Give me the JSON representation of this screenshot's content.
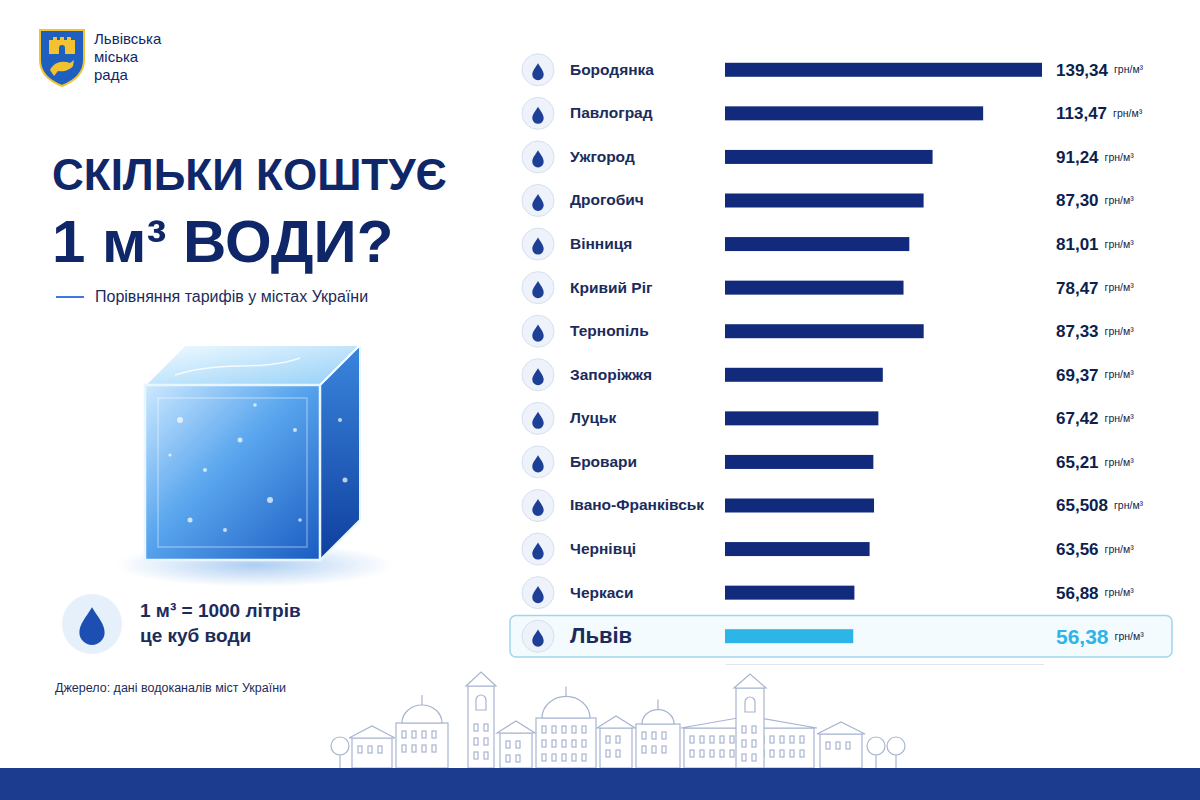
{
  "chart_data": {
    "type": "bar",
    "orientation": "horizontal",
    "organization": "Львівська міська рада",
    "title": "СКІЛЬКИ КОШТУЄ 1 м³ ВОДИ?",
    "subtitle": "Порівняння тарифів у містах України",
    "annotations": [
      "1 м³ = 1000 літрів",
      "це куб води"
    ],
    "source": "Джерело: дані водоканалів міст України",
    "unit_label": "грн/м³",
    "categories": [
      "Бородянка",
      "Павлоград",
      "Ужгород",
      "Дрогобич",
      "Вінниця",
      "Кривий Ріг",
      "Тернопіль",
      "Запоріжжя",
      "Луцьк",
      "Бровари",
      "Івано-Франківськ",
      "Чернівці",
      "Черкаси",
      "Львів"
    ],
    "values": [
      139.34,
      113.47,
      91.24,
      87.3,
      81.01,
      78.47,
      87.33,
      69.37,
      67.42,
      65.21,
      65.508,
      63.56,
      56.88,
      56.38
    ],
    "value_labels": [
      "139,34",
      "113,47",
      "91,24",
      "87,30",
      "81,01",
      "78,47",
      "87,33",
      "69,37",
      "67,42",
      "65,21",
      "65,508",
      "63,56",
      "56,88",
      "56,38"
    ],
    "colors": [
      "#112a7c",
      "#112a7c",
      "#112a7c",
      "#112a7c",
      "#112a7c",
      "#112a7c",
      "#112a7c",
      "#112a7c",
      "#112a7c",
      "#112a7c",
      "#112a7c",
      "#112a7c",
      "#112a7c",
      "#2cb5e6"
    ],
    "xlim": [
      0,
      140
    ],
    "data_labels": true,
    "tick_labels": false,
    "grid": false
  }
}
